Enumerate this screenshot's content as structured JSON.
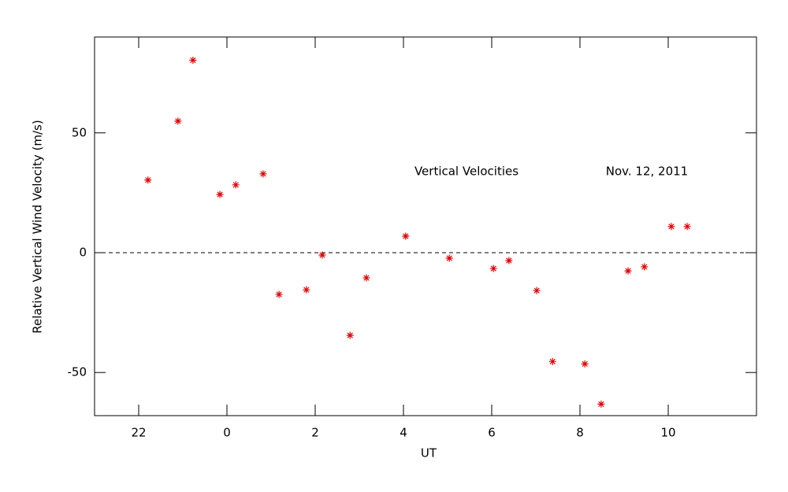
{
  "chart_data": {
    "type": "scatter",
    "x_label": "UT",
    "y_label": "Relative Vertical Wind Velocity (m/s)",
    "annotations": [
      "Vertical Velocities",
      "Nov. 12, 2011"
    ],
    "color": "#e00000",
    "xlim": [
      -3,
      12
    ],
    "xticks": [
      {
        "value": -2,
        "label": "22"
      },
      0,
      2,
      4,
      6,
      8,
      10
    ],
    "ylim": [
      -68,
      90
    ],
    "yticks": [
      -50,
      0,
      50
    ],
    "x": [
      -1.79,
      -1.11,
      -0.77,
      -0.16,
      0.2,
      0.82,
      1.18,
      1.8,
      2.16,
      2.79,
      3.16,
      4.05,
      5.04,
      6.04,
      6.39,
      7.02,
      7.38,
      8.11,
      8.48,
      9.09,
      9.46,
      10.07,
      10.43
    ],
    "values": [
      30.3,
      54.9,
      80.3,
      24.3,
      28.3,
      32.9,
      -17.4,
      -15.5,
      -1.0,
      -34.5,
      -10.5,
      6.9,
      -2.3,
      -6.6,
      -3.3,
      -15.8,
      -45.4,
      -46.4,
      -63.2,
      -7.6,
      -5.9,
      10.9,
      10.9
    ]
  }
}
